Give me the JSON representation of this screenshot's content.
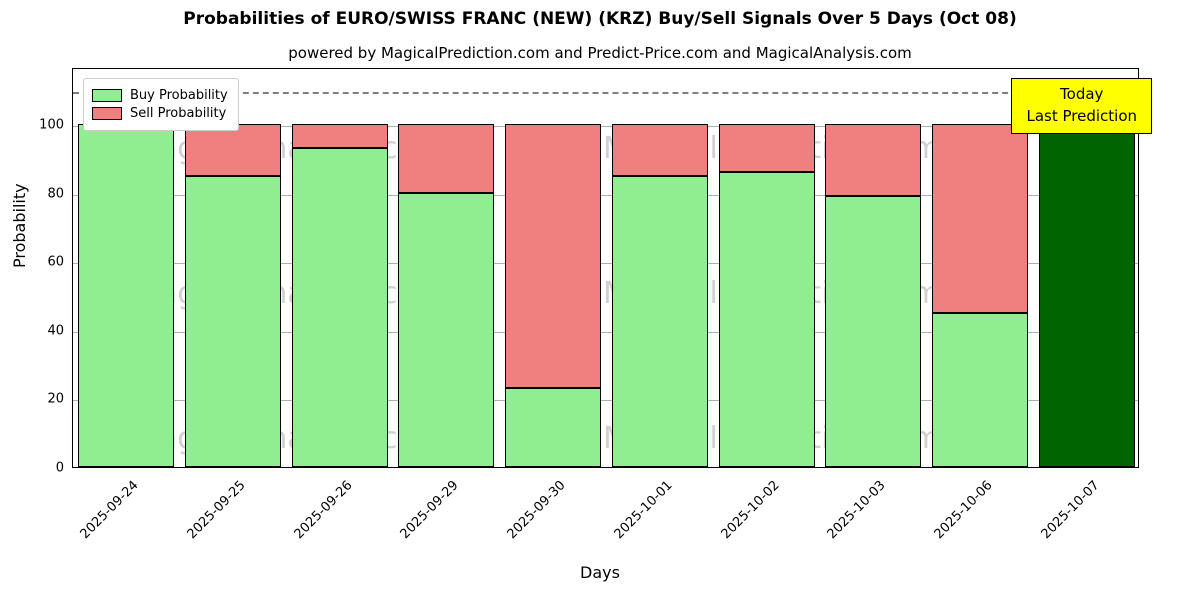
{
  "title": "Probabilities of EURO/SWISS FRANC (NEW) (KRZ) Buy/Sell Signals Over 5 Days (Oct 08)",
  "subtitle": "powered by MagicalPrediction.com and Predict-Price.com and MagicalAnalysis.com",
  "annotation": {
    "line1": "Today",
    "line2": "Last Prediction"
  },
  "legend": {
    "buy_label": "Buy Probability",
    "sell_label": "Sell Probability"
  },
  "watermarks": [
    "MagicalAnalysis.com",
    "MagicalPrediction.com"
  ],
  "colors": {
    "buy": "#90ee90",
    "sell": "#f08080",
    "today_bar": "#006400",
    "annotation_bg": "#ffff00",
    "grid": "#b0b0b0"
  },
  "chart_data": {
    "type": "bar",
    "stacked": true,
    "title": "Probabilities of EURO/SWISS FRANC (NEW) (KRZ) Buy/Sell Signals Over 5 Days (Oct 08)",
    "xlabel": "Days",
    "ylabel": "Probability",
    "categories": [
      "2025-09-24",
      "2025-09-25",
      "2025-09-26",
      "2025-09-29",
      "2025-09-30",
      "2025-10-01",
      "2025-10-02",
      "2025-10-03",
      "2025-10-06",
      "2025-10-07"
    ],
    "series": [
      {
        "name": "Buy Probability",
        "color": "#90ee90",
        "values": [
          100,
          85,
          93,
          80,
          23,
          85,
          86,
          79,
          45,
          100
        ]
      },
      {
        "name": "Sell Probability",
        "color": "#f08080",
        "values": [
          0,
          15,
          7,
          20,
          77,
          15,
          14,
          21,
          55,
          0
        ]
      }
    ],
    "today_bar_index": 9,
    "yticks": [
      0,
      20,
      40,
      60,
      80,
      100
    ],
    "ylim": [
      0,
      116.7
    ],
    "dashed_line_y": 110,
    "grid": true,
    "legend_position": "upper left"
  }
}
